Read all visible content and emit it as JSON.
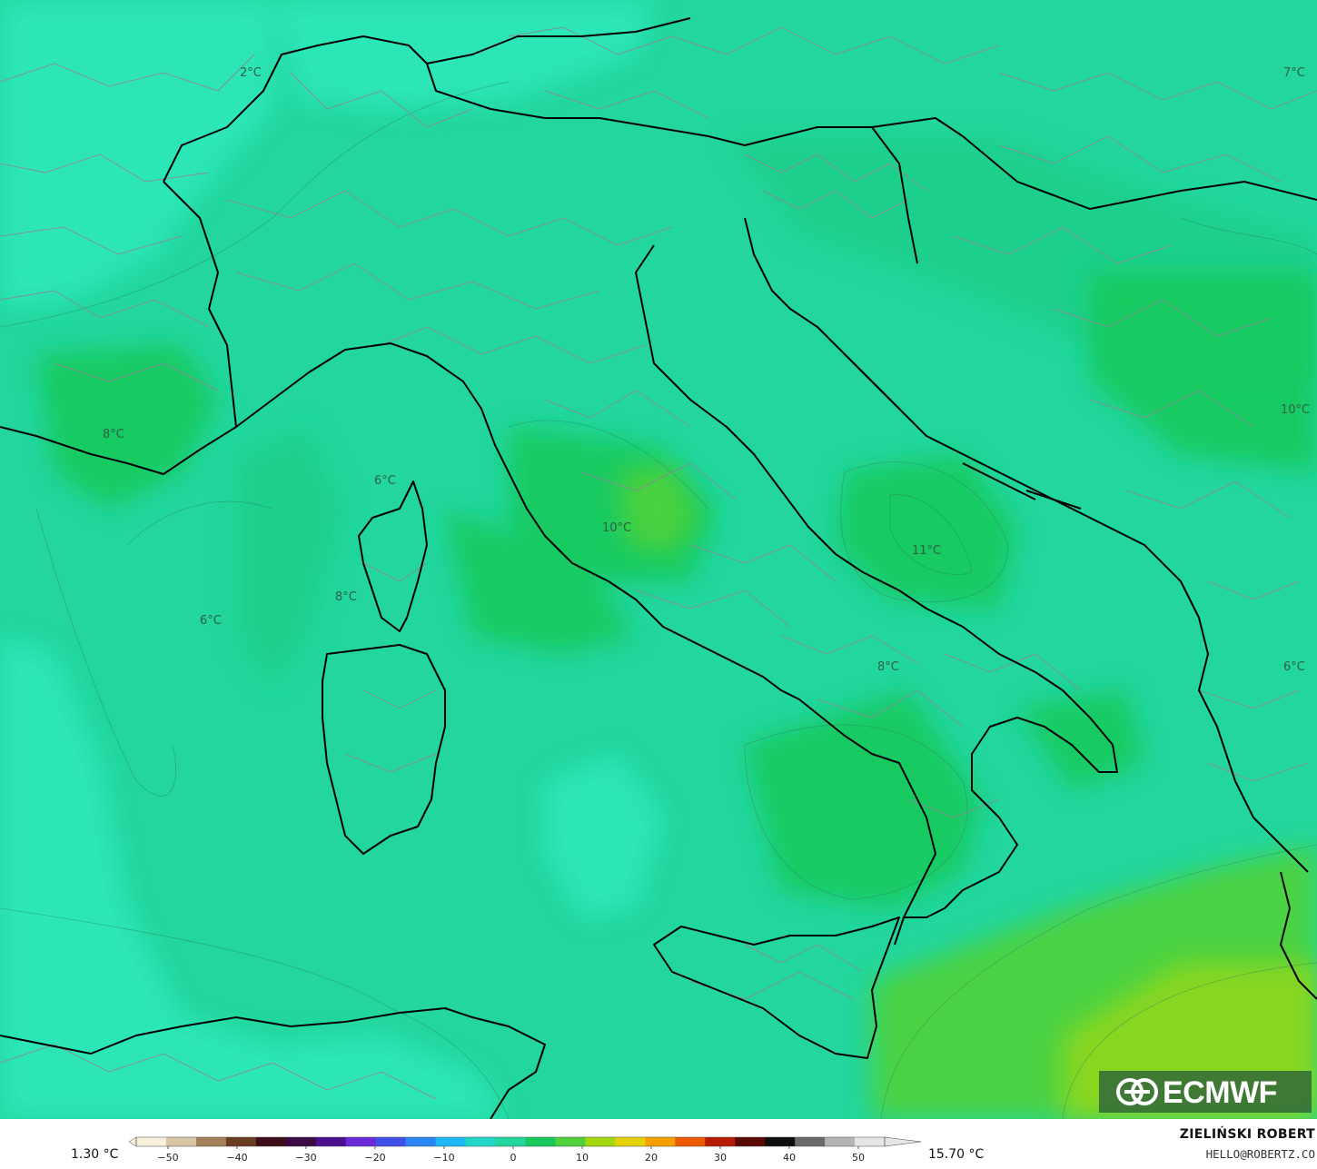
{
  "map": {
    "contour_labels": [
      {
        "id": "label-2c",
        "text": "2°C"
      },
      {
        "id": "label-7c",
        "text": "7°C"
      },
      {
        "id": "label-8c-west",
        "text": "8°C"
      },
      {
        "id": "label-6c-ligurian",
        "text": "6°C"
      },
      {
        "id": "label-10c-lazio",
        "text": "10°C"
      },
      {
        "id": "label-11c-adriatic",
        "text": "11°C"
      },
      {
        "id": "label-8c-corsica",
        "text": "8°C"
      },
      {
        "id": "label-6c-west",
        "text": "6°C"
      },
      {
        "id": "label-8c-south",
        "text": "8°C"
      },
      {
        "id": "label-10c-balkan",
        "text": "10°C"
      },
      {
        "id": "label-6c-east",
        "text": "6°C"
      }
    ],
    "colors": {
      "base": "#22d69e",
      "cool": "#2ee8bb",
      "mid": "#1bcf88",
      "warm": "#17c95c",
      "warmer": "#4fd23a",
      "hot": "#8fd71c",
      "coast": "#000000",
      "border": "#8a8a96"
    }
  },
  "logo": {
    "text": "ECMWF"
  },
  "footer": {
    "min_value": "1.30 °C",
    "max_value": "15.70 °C",
    "scale_ticks": [
      "−50",
      "−40",
      "−30",
      "−20",
      "−10",
      "0",
      "10",
      "20",
      "30",
      "40",
      "50"
    ],
    "scale_colors": [
      "#f7f0dc",
      "#d8c5a5",
      "#a6825c",
      "#6a3c22",
      "#3d0d1a",
      "#3a0a44",
      "#4a1090",
      "#6a2ad8",
      "#4050e8",
      "#2c86f2",
      "#1cb8f4",
      "#22d6c8",
      "#22d69e",
      "#17c95c",
      "#4fd23a",
      "#a4d80e",
      "#e4d300",
      "#f6a000",
      "#ee5a00",
      "#b81c00",
      "#5a0a00",
      "#0e0e0e",
      "#6a6a6a",
      "#b4b4b4",
      "#e6e6e6"
    ],
    "credit_name": "ZIELIŃSKI ROBERT",
    "credit_email": "HELLO@ROBERTZ.CO"
  }
}
